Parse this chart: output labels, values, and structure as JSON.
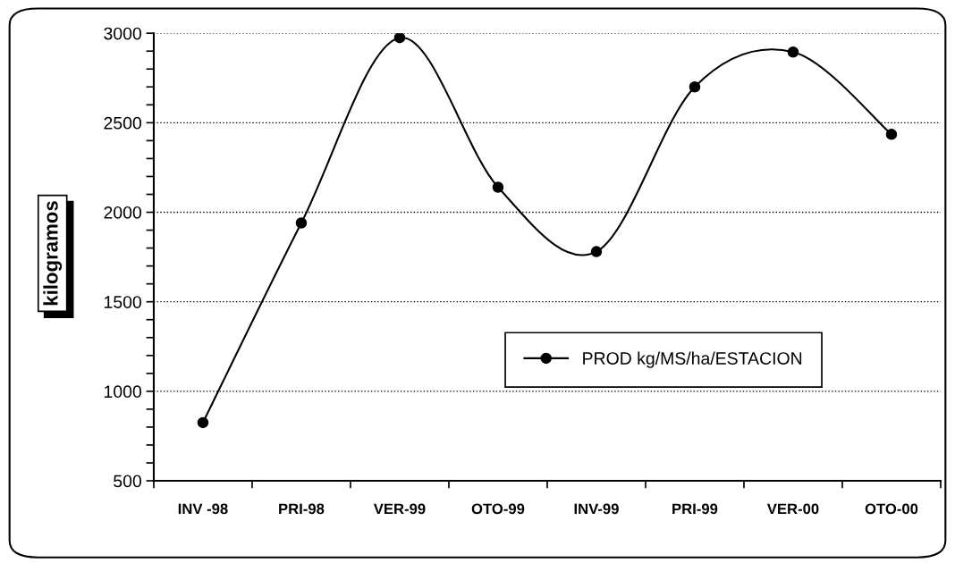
{
  "chart_data": {
    "type": "line",
    "ylabel": "kilogramos",
    "categories": [
      "INV -98",
      "PRI-98",
      "VER-99",
      "OTO-99",
      "INV-99",
      "PRI-99",
      "VER-00",
      "OTO-00"
    ],
    "series": [
      {
        "name": "PROD kg/MS/ha/ESTACION",
        "color": "#000000",
        "values": [
          825,
          1940,
          2975,
          2140,
          1780,
          2700,
          2895,
          2435
        ]
      }
    ],
    "ylim": [
      500,
      3000
    ],
    "yticks": [
      500,
      1000,
      1500,
      2000,
      2500,
      3000
    ],
    "grid": "y",
    "legend": "bottom right",
    "marker": "circle",
    "line_style": "solid"
  }
}
